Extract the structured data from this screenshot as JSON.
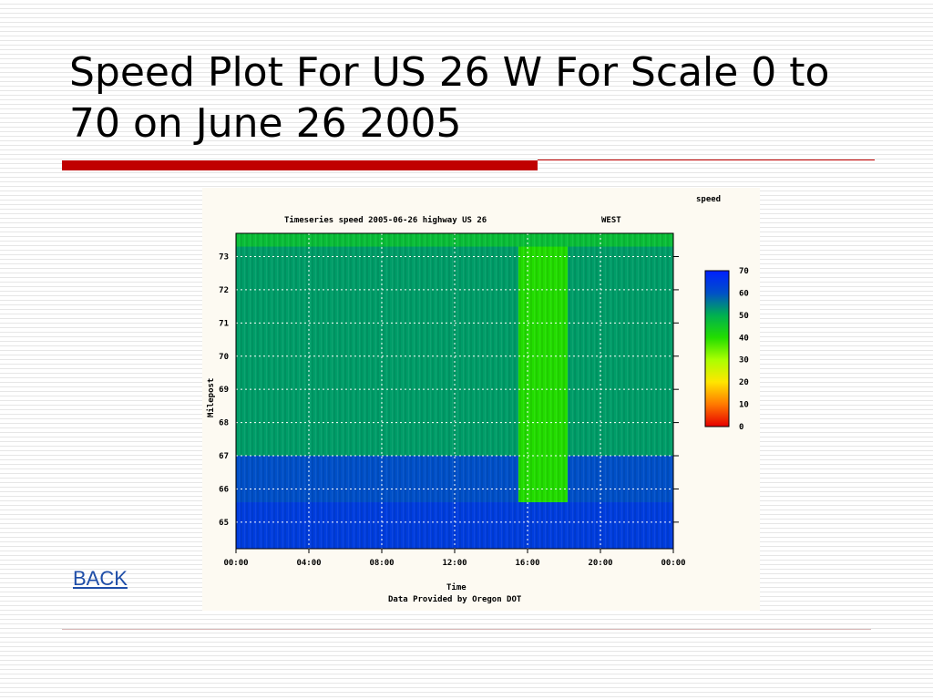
{
  "slide": {
    "title": "Speed Plot For US 26 W For Scale 0 to 70 on June 26 2005",
    "back_link": "BACK"
  },
  "colors": {
    "accent_rule": "#c00000",
    "link": "#1f4ea8",
    "colorscale": [
      "#e60000",
      "#ff7a00",
      "#ffe600",
      "#aaff00",
      "#22dd00",
      "#00b050",
      "#0050c8",
      "#0020ff"
    ]
  },
  "chart_data": {
    "type": "heatmap",
    "title": "Timeseries speed 2005-06-26 highway US 26",
    "direction_label": "WEST",
    "legend_title": "speed",
    "xlabel": "Time",
    "xlabel_note": "Data Provided by Oregon DOT",
    "ylabel": "Milepost",
    "x_ticks": [
      "00:00",
      "04:00",
      "08:00",
      "12:00",
      "16:00",
      "20:00",
      "00:00"
    ],
    "y_ticks": [
      "65",
      "66",
      "67",
      "68",
      "69",
      "70",
      "71",
      "72",
      "73"
    ],
    "ylim": [
      64.2,
      73.7
    ],
    "xlim_hours": [
      0,
      24
    ],
    "colorbar_ticks": [
      "70",
      "60",
      "50",
      "40",
      "30",
      "20",
      "10",
      "0"
    ],
    "colorbar_range": [
      0,
      70
    ],
    "grid": true,
    "regions": [
      {
        "hours": [
          0,
          24
        ],
        "mileposts": [
          67,
          73.7
        ],
        "speed": 52
      },
      {
        "hours": [
          0,
          24
        ],
        "mileposts": [
          65.6,
          67
        ],
        "speed": 60
      },
      {
        "hours": [
          0,
          24
        ],
        "mileposts": [
          64.2,
          65.6
        ],
        "speed": 64
      },
      {
        "hours": [
          0,
          24
        ],
        "mileposts": [
          73.3,
          73.7
        ],
        "speed": 47
      },
      {
        "hours": [
          15.5,
          18.2
        ],
        "mileposts": [
          65.6,
          73.3
        ],
        "speed": 40
      }
    ]
  }
}
